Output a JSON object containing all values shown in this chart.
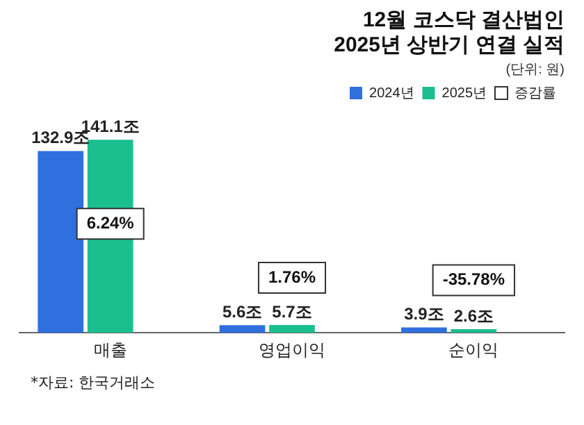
{
  "chart_data": {
    "type": "bar",
    "title": "12월 코스닥 결산법인\n2025년 상반기 연결 실적",
    "subtitle": "(단위: 원)",
    "categories": [
      "매출",
      "영업이익",
      "순이익"
    ],
    "series": [
      {
        "name": "2024년",
        "color": "#2f6fde",
        "values": [
          132.9,
          5.6,
          3.9
        ],
        "value_labels": [
          "132.9조",
          "5.6조",
          "3.9조"
        ]
      },
      {
        "name": "2025년",
        "color": "#1bbf8f",
        "values": [
          141.1,
          5.7,
          2.6
        ],
        "value_labels": [
          "141.1조",
          "5.7조",
          "2.6조"
        ]
      },
      {
        "name": "증감률",
        "color": "#ffffff",
        "values": [
          null,
          null,
          null
        ]
      }
    ],
    "annotations": [
      "6.24%",
      "1.76%",
      "-35.78%",
      "*자료: 한국거래소"
    ],
    "legend": "top right",
    "grid": false
  }
}
